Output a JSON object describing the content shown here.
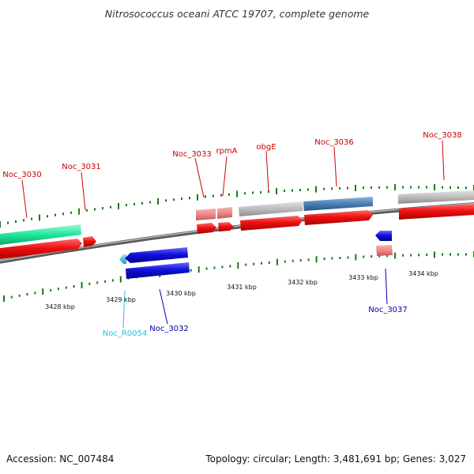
{
  "title": "Nitrosococcus oceani ATCC 19707, complete genome",
  "footer": {
    "accession": "Accession: NC_007484",
    "summary": "Topology: circular; Length: 3,481,691 bp; Genes: 3,027"
  },
  "scale_labels": [
    "3428 kbp",
    "3429 kbp",
    "3430 kbp",
    "3431 kbp",
    "3432 kbp",
    "3433 kbp",
    "3434 kbp"
  ],
  "gene_labels": [
    {
      "text": "Noc_3030",
      "color": "#cc0000"
    },
    {
      "text": "Noc_3031",
      "color": "#cc0000"
    },
    {
      "text": "Noc_3033",
      "color": "#cc0000"
    },
    {
      "text": "rpmA",
      "color": "#cc0000"
    },
    {
      "text": "obgE",
      "color": "#cc0000"
    },
    {
      "text": "Noc_3036",
      "color": "#cc0000"
    },
    {
      "text": "Noc_3038",
      "color": "#cc0000"
    },
    {
      "text": "Noc_R0054",
      "color": "#33bbdd"
    },
    {
      "text": "Noc_3032",
      "color": "#0000aa"
    },
    {
      "text": "Noc_3037",
      "color": "#0000aa"
    }
  ],
  "colors": {
    "cds": "#ee1111",
    "trna": "#1ee89a",
    "ncrna": "#33bbdd",
    "reverse_cds": "#1111dd",
    "pale_red": "#ee8888",
    "grey_feature": "#bdbdbd",
    "steel_feature": "#4a7fb5",
    "tick": "#1a7a1a",
    "backbone": "#7a7a7a"
  }
}
